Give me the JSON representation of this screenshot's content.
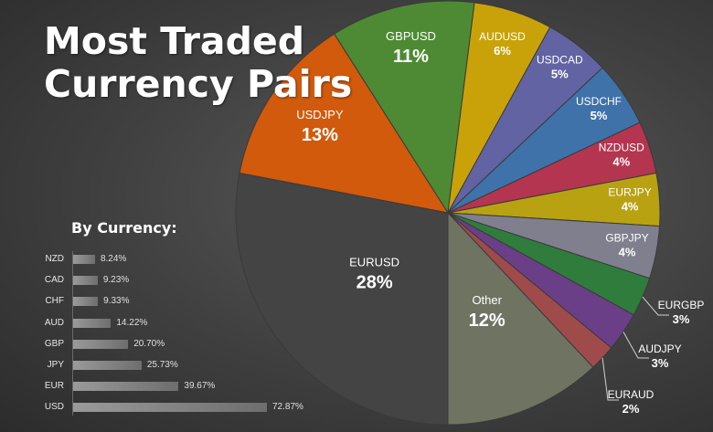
{
  "title_line1": "Most Traded",
  "title_line2": "Currency Pairs",
  "chart_data": [
    {
      "type": "pie",
      "title": "Most Traded Currency Pairs",
      "slices": [
        {
          "label": "EURUSD",
          "value": 28,
          "value_label": "28%",
          "color": "#444444"
        },
        {
          "label": "USDJPY",
          "value": 13,
          "value_label": "13%",
          "color": "#d15a0c"
        },
        {
          "label": "GBPUSD",
          "value": 11,
          "value_label": "11%",
          "color": "#4e8a34"
        },
        {
          "label": "AUDUSD",
          "value": 6,
          "value_label": "6%",
          "color": "#c9a20a"
        },
        {
          "label": "USDCAD",
          "value": 5,
          "value_label": "5%",
          "color": "#6263a3"
        },
        {
          "label": "USDCHF",
          "value": 5,
          "value_label": "5%",
          "color": "#3f72a8"
        },
        {
          "label": "NZDUSD",
          "value": 4,
          "value_label": "4%",
          "color": "#b4354f"
        },
        {
          "label": "EURJPY",
          "value": 4,
          "value_label": "4%",
          "color": "#b9a212"
        },
        {
          "label": "GBPJPY",
          "value": 4,
          "value_label": "4%",
          "color": "#7f7f8e"
        },
        {
          "label": "EURGBP",
          "value": 3,
          "value_label": "3%",
          "color": "#2f7c3d"
        },
        {
          "label": "AUDJPY",
          "value": 3,
          "value_label": "3%",
          "color": "#6a3f87"
        },
        {
          "label": "EURAUD",
          "value": 2,
          "value_label": "2%",
          "color": "#a04b4b"
        },
        {
          "label": "Other",
          "value": 12,
          "value_label": "12%",
          "color": "#6f7462"
        }
      ]
    },
    {
      "type": "bar",
      "orientation": "horizontal",
      "title": "By Currency:",
      "categories": [
        "NZD",
        "CAD",
        "CHF",
        "AUD",
        "GBP",
        "JPY",
        "EUR",
        "USD"
      ],
      "values": [
        8.24,
        9.23,
        9.33,
        14.22,
        20.7,
        25.73,
        39.67,
        72.87
      ],
      "value_labels": [
        "8.24%",
        "9.23%",
        "9.33%",
        "14.22%",
        "20.70%",
        "25.73%",
        "39.67%",
        "72.87%"
      ]
    }
  ]
}
